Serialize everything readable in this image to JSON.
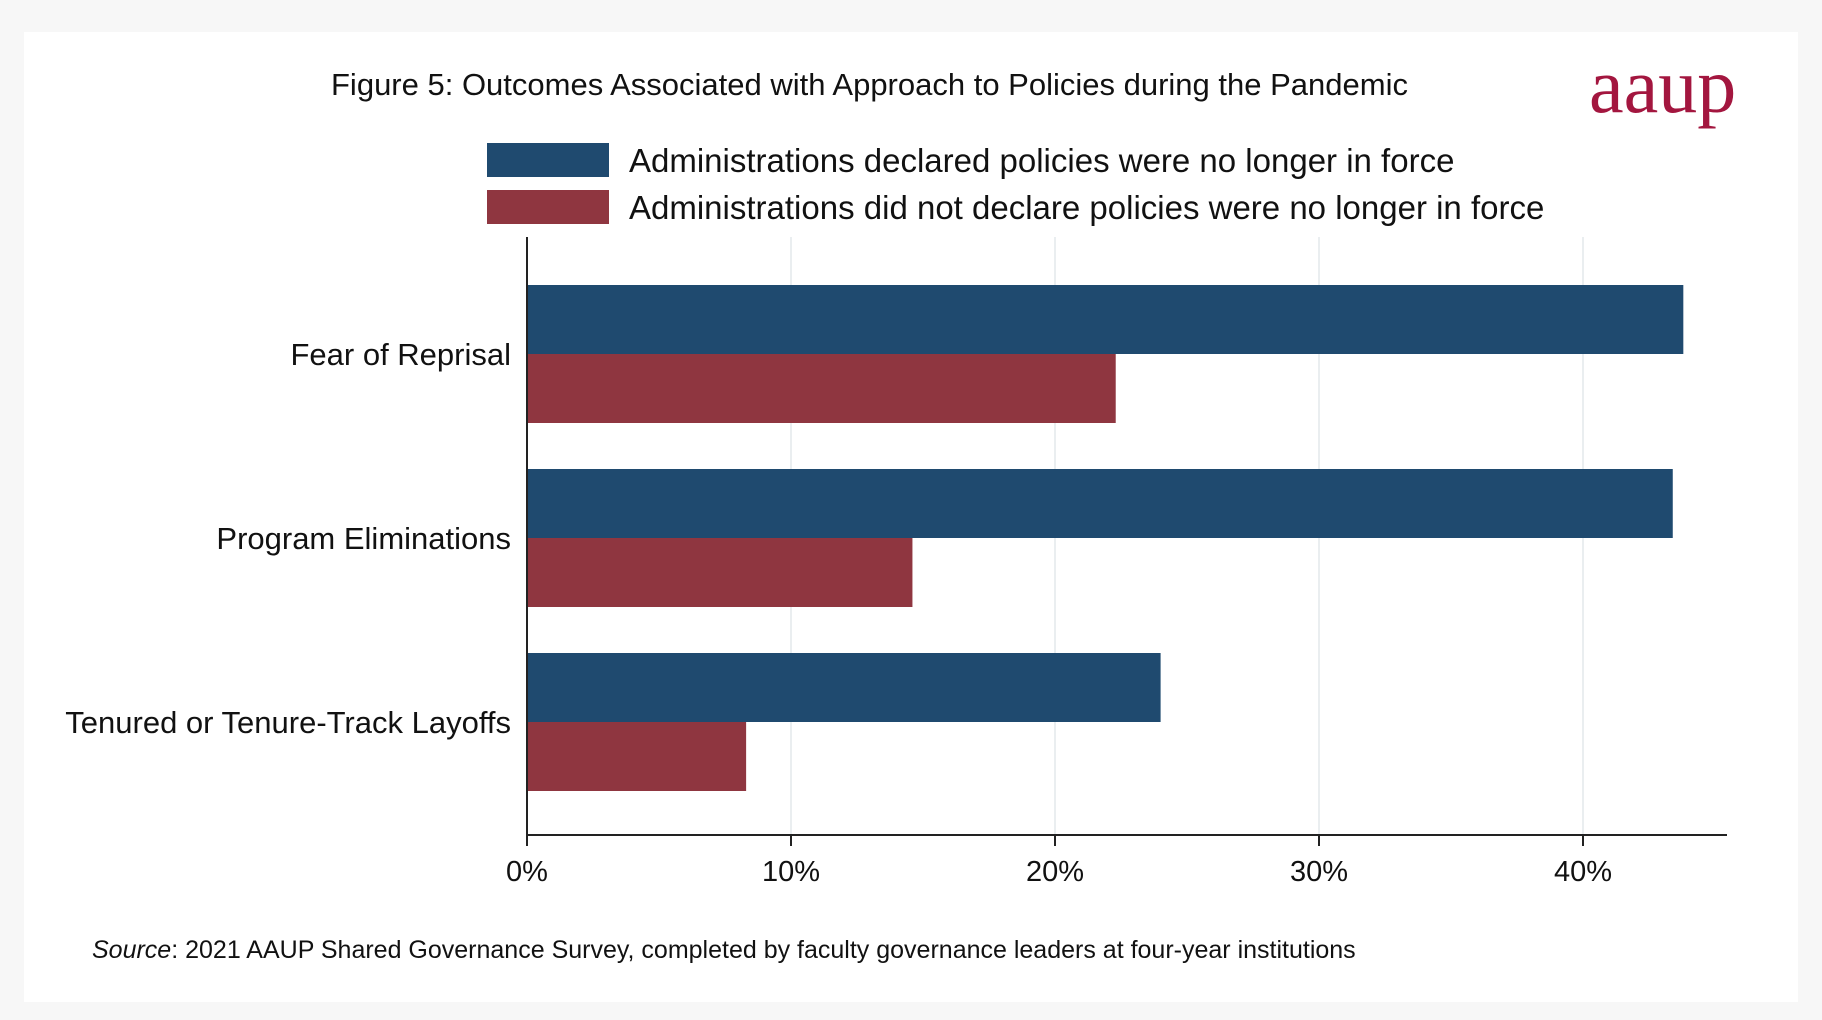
{
  "chart_data": {
    "type": "bar",
    "orientation": "horizontal",
    "title": "Figure 5: Outcomes Associated with Approach to Policies during the Pandemic",
    "categories": [
      "Fear of Reprisal",
      "Program Eliminations",
      "Tenured or Tenure-Track Layoffs"
    ],
    "series": [
      {
        "name": "Administrations declared policies were no longer in force",
        "color": "#1f4a6f",
        "values": [
          43.8,
          43.4,
          24.0
        ]
      },
      {
        "name": "Administrations did not declare policies were no longer in force",
        "color": "#8f3640",
        "values": [
          22.3,
          14.6,
          8.3
        ]
      }
    ],
    "xlim": [
      0,
      45
    ],
    "xticks": [
      0,
      10,
      20,
      30,
      40
    ],
    "tick_labels": [
      "0%",
      "10%",
      "20%",
      "30%",
      "40%"
    ],
    "grid": "vertical",
    "legend_placement": "top"
  },
  "logo": {
    "text": "aaup"
  },
  "source": {
    "label": "Source",
    "text": ": 2021 AAUP Shared Governance Survey, completed by faculty governance leaders at four-year institutions"
  }
}
